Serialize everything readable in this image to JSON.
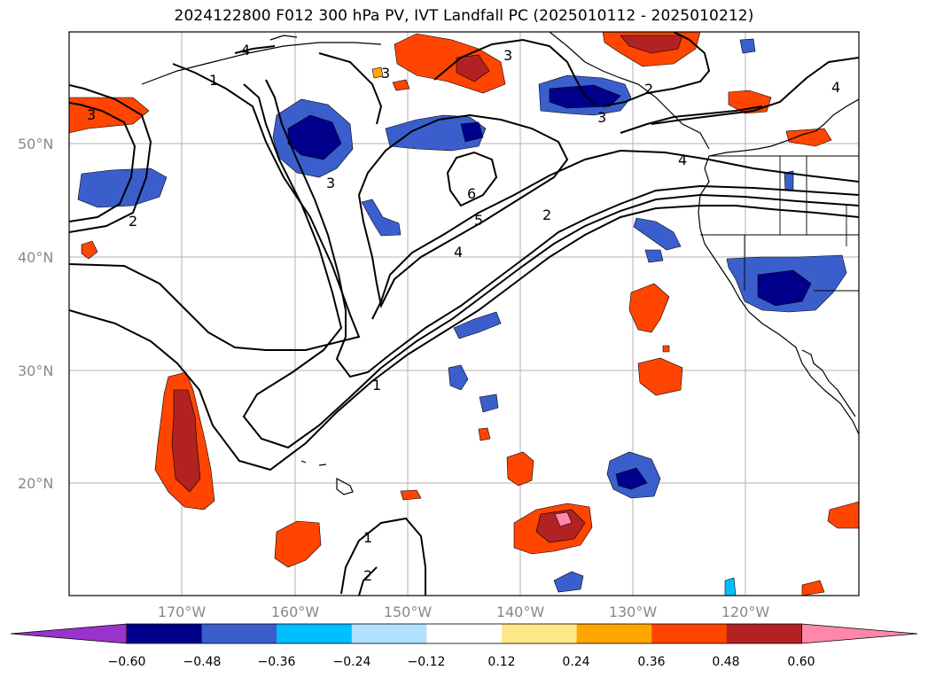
{
  "title": "2024122800 F012 300 hPa PV, IVT Landfall PC (2025010112 - 2025010212)",
  "map": {
    "lat_labels": [
      "50°N",
      "40°N",
      "30°N",
      "20°N"
    ],
    "lon_labels": [
      "170°W",
      "160°W",
      "150°W",
      "140°W",
      "130°W",
      "120°W"
    ],
    "contour_labels": [
      "1",
      "1",
      "1",
      "2",
      "2",
      "2",
      "2",
      "3",
      "3",
      "3",
      "3",
      "3",
      "4",
      "4",
      "4",
      "4",
      "5",
      "6"
    ]
  },
  "colorbar": {
    "ticks": [
      "−0.60",
      "−0.48",
      "−0.36",
      "−0.24",
      "−0.12",
      "0.12",
      "0.24",
      "0.36",
      "0.48",
      "0.60"
    ],
    "colors": [
      "#9933cc",
      "#00008b",
      "#3a5fcd",
      "#00bfff",
      "#b0e2ff",
      "#ffffff",
      "#ffe88a",
      "#ffa500",
      "#ff4500",
      "#b22222",
      "#ff88aa"
    ]
  }
}
